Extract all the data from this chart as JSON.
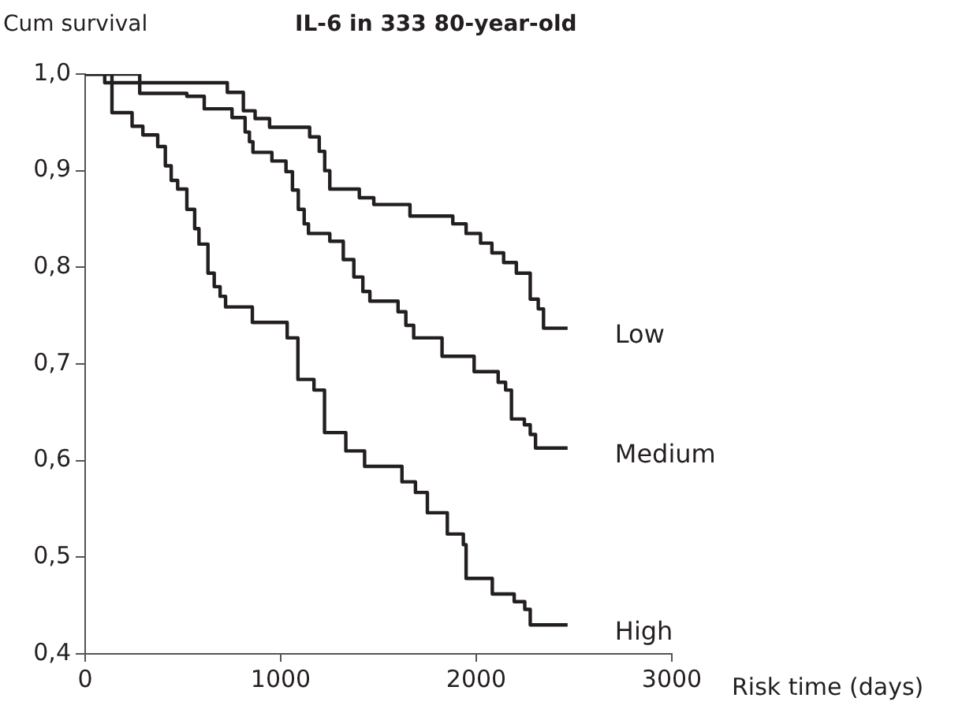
{
  "chart_data": {
    "type": "step",
    "title": "IL-6 in 333 80-year-old",
    "xlabel": "Risk time (days)",
    "ylabel": "Cum survival",
    "xlim": [
      0,
      3000
    ],
    "xticks": [
      0,
      1000,
      2000,
      3000
    ],
    "ylim": [
      0.4,
      1.0
    ],
    "yticks": [
      {
        "value": 0.4,
        "label": "0,4"
      },
      {
        "value": 0.5,
        "label": "0,5"
      },
      {
        "value": 0.6,
        "label": "0,6"
      },
      {
        "value": 0.7,
        "label": "0,7"
      },
      {
        "value": 0.8,
        "label": "0,8"
      },
      {
        "value": 0.9,
        "label": "0,9"
      },
      {
        "value": 1.0,
        "label": "1,0"
      }
    ],
    "grid": false,
    "legend": false,
    "marker": "none",
    "line_style": "solid",
    "series": [
      {
        "name": "Low",
        "color": "#231f20",
        "x": [
          0,
          100,
          727,
          809,
          869,
          943,
          1148,
          1197,
          1225,
          1251,
          1402,
          1476,
          1661,
          1880,
          1948,
          2022,
          2080,
          2140,
          2205,
          2276,
          2317,
          2344,
          2467
        ],
        "values": [
          1,
          0.991,
          0.981,
          0.962,
          0.954,
          0.945,
          0.935,
          0.92,
          0.9,
          0.881,
          0.872,
          0.865,
          0.853,
          0.845,
          0.835,
          0.825,
          0.815,
          0.805,
          0.794,
          0.767,
          0.757,
          0.737,
          0.737
        ]
      },
      {
        "name": "Medium",
        "color": "#231f20",
        "x": [
          0,
          279,
          520,
          609,
          751,
          818,
          840,
          858,
          955,
          1027,
          1060,
          1090,
          1120,
          1142,
          1251,
          1320,
          1374,
          1420,
          1456,
          1600,
          1640,
          1680,
          1825,
          1989,
          2112,
          2150,
          2180,
          2246,
          2276,
          2303,
          2467
        ],
        "values": [
          1,
          0.98,
          0.977,
          0.964,
          0.955,
          0.94,
          0.93,
          0.919,
          0.91,
          0.899,
          0.88,
          0.86,
          0.845,
          0.835,
          0.827,
          0.808,
          0.79,
          0.775,
          0.765,
          0.754,
          0.74,
          0.727,
          0.708,
          0.692,
          0.681,
          0.673,
          0.643,
          0.637,
          0.627,
          0.613,
          0.613
        ]
      },
      {
        "name": "High",
        "color": "#231f20",
        "x": [
          0,
          137,
          240,
          295,
          371,
          410,
          440,
          473,
          520,
          560,
          582,
          628,
          660,
          690,
          718,
          855,
          1033,
          1088,
          1170,
          1224,
          1333,
          1429,
          1620,
          1689,
          1750,
          1852,
          1934,
          1948,
          2082,
          2194,
          2248,
          2276,
          2467
        ],
        "values": [
          1,
          0.96,
          0.946,
          0.937,
          0.925,
          0.905,
          0.89,
          0.881,
          0.86,
          0.84,
          0.824,
          0.794,
          0.78,
          0.77,
          0.759,
          0.743,
          0.727,
          0.684,
          0.673,
          0.629,
          0.61,
          0.594,
          0.578,
          0.567,
          0.546,
          0.524,
          0.513,
          0.478,
          0.462,
          0.454,
          0.446,
          0.43,
          0.43
        ]
      }
    ]
  }
}
